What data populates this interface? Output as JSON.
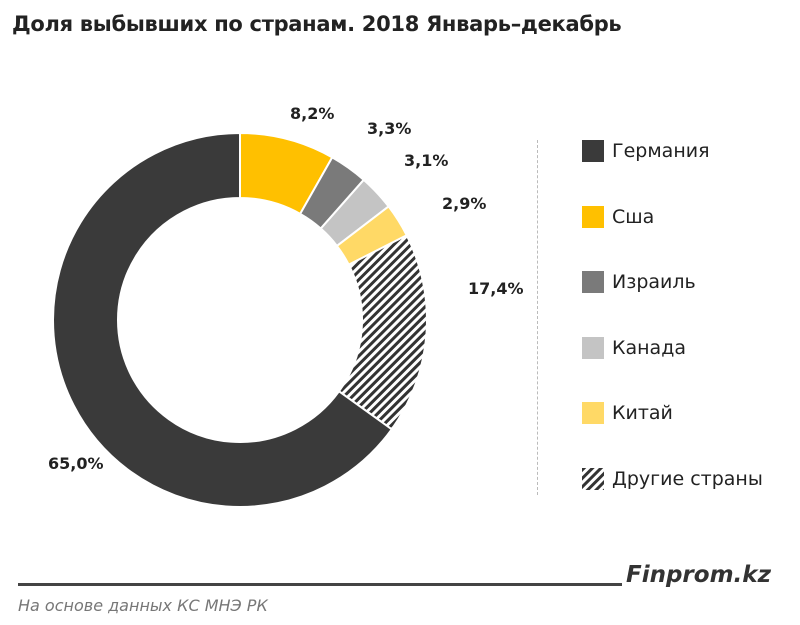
{
  "title": "Доля выбывших по странам. 2018  Январь–декабрь",
  "chart_data": {
    "type": "pie",
    "subtype": "donut",
    "title": "Доля выбывших по странам. 2018  Январь–декабрь",
    "legend_position": "right",
    "slices": [
      {
        "name": "Германия",
        "value": 65.0,
        "label": "65,0%",
        "color": "#3a3a3a"
      },
      {
        "name": "Сша",
        "value": 8.2,
        "label": "8,2%",
        "color": "#ffc000"
      },
      {
        "name": "Израиль",
        "value": 3.3,
        "label": "3,3%",
        "color": "#7a7a7a"
      },
      {
        "name": "Канада",
        "value": 3.1,
        "label": "3,1%",
        "color": "#c4c4c4"
      },
      {
        "name": "Китай",
        "value": 2.9,
        "label": "2,9%",
        "color": "#ffd966"
      },
      {
        "name": "Другие страны",
        "value": 17.4,
        "label": "17,4%",
        "color": "hatch"
      }
    ]
  },
  "footer": {
    "brand": "Finprom.kz",
    "source": "На основе данных  КС МНЭ РК"
  }
}
